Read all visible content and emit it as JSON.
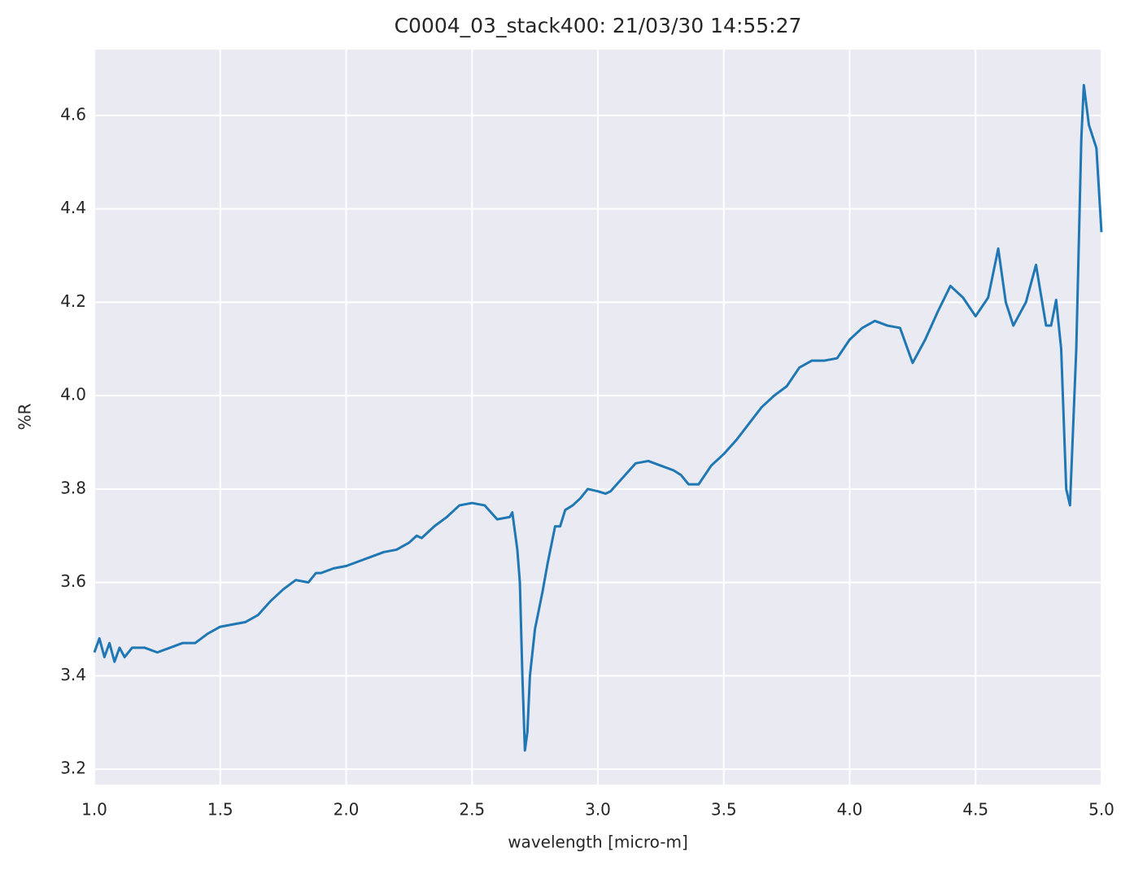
{
  "chart_data": {
    "type": "line",
    "title": "C0004_03_stack400:  21/03/30 14:55:27",
    "x_label": "wavelength [micro-m]",
    "y_label": "%R",
    "x": [
      1.0,
      1.02,
      1.04,
      1.06,
      1.08,
      1.1,
      1.12,
      1.15,
      1.2,
      1.25,
      1.3,
      1.35,
      1.4,
      1.45,
      1.5,
      1.55,
      1.6,
      1.65,
      1.7,
      1.75,
      1.8,
      1.85,
      1.88,
      1.9,
      1.95,
      2.0,
      2.05,
      2.1,
      2.15,
      2.2,
      2.25,
      2.28,
      2.3,
      2.35,
      2.4,
      2.45,
      2.5,
      2.55,
      2.6,
      2.65,
      2.66,
      2.68,
      2.69,
      2.7,
      2.71,
      2.72,
      2.73,
      2.75,
      2.78,
      2.8,
      2.83,
      2.85,
      2.87,
      2.9,
      2.93,
      2.96,
      3.0,
      3.03,
      3.05,
      3.1,
      3.15,
      3.2,
      3.25,
      3.3,
      3.33,
      3.36,
      3.4,
      3.45,
      3.5,
      3.55,
      3.6,
      3.65,
      3.7,
      3.75,
      3.8,
      3.85,
      3.9,
      3.95,
      4.0,
      4.05,
      4.1,
      4.15,
      4.2,
      4.25,
      4.3,
      4.35,
      4.4,
      4.45,
      4.5,
      4.55,
      4.59,
      4.62,
      4.65,
      4.7,
      4.74,
      4.78,
      4.8,
      4.82,
      4.84,
      4.86,
      4.875,
      4.9,
      4.92,
      4.93,
      4.95,
      4.98,
      5.0
    ],
    "series": [
      {
        "name": "%R",
        "color": "#1f77b4",
        "values": [
          3.45,
          3.48,
          3.44,
          3.47,
          3.43,
          3.46,
          3.44,
          3.46,
          3.46,
          3.45,
          3.46,
          3.47,
          3.47,
          3.49,
          3.505,
          3.51,
          3.515,
          3.53,
          3.56,
          3.585,
          3.605,
          3.6,
          3.62,
          3.62,
          3.63,
          3.635,
          3.645,
          3.655,
          3.665,
          3.67,
          3.685,
          3.7,
          3.695,
          3.72,
          3.74,
          3.765,
          3.77,
          3.765,
          3.735,
          3.74,
          3.75,
          3.67,
          3.6,
          3.4,
          3.24,
          3.28,
          3.4,
          3.5,
          3.58,
          3.64,
          3.72,
          3.72,
          3.755,
          3.765,
          3.78,
          3.8,
          3.795,
          3.79,
          3.795,
          3.825,
          3.855,
          3.86,
          3.85,
          3.84,
          3.83,
          3.81,
          3.81,
          3.85,
          3.875,
          3.905,
          3.94,
          3.975,
          4.0,
          4.02,
          4.06,
          4.075,
          4.075,
          4.08,
          4.12,
          4.145,
          4.16,
          4.15,
          4.145,
          4.07,
          4.12,
          4.18,
          4.235,
          4.21,
          4.17,
          4.21,
          4.315,
          4.2,
          4.15,
          4.2,
          4.28,
          4.15,
          4.15,
          4.205,
          4.1,
          3.8,
          3.765,
          4.1,
          4.55,
          4.665,
          4.58,
          4.53,
          4.35
        ]
      }
    ],
    "xlim": [
      1.0,
      5.0
    ],
    "xticks": [
      {
        "value": 1,
        "label": "1.0"
      },
      1.5,
      {
        "value": 2,
        "label": "2.0"
      },
      2.5,
      {
        "value": 3,
        "label": "3.0"
      },
      3.5,
      {
        "value": 4,
        "label": "4.0"
      },
      4.5,
      {
        "value": 5,
        "label": "5.0"
      }
    ],
    "ylim": [
      3.167,
      4.741
    ],
    "yticks": [
      3.2,
      3.4,
      3.6,
      3.8,
      {
        "value": 4,
        "label": "4.0"
      },
      4.2,
      4.4,
      4.6
    ],
    "grid": true,
    "background": "#eaeaf2"
  }
}
